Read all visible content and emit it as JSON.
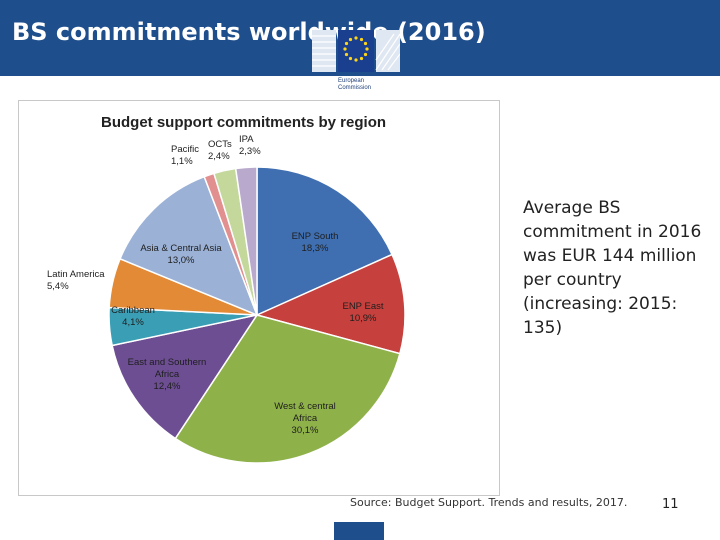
{
  "header": {
    "title": "BS commitments worldwide (2016)",
    "logo_text_line1": "European",
    "logo_text_line2": "Commission"
  },
  "colors": {
    "header_bg": "#1f4e8c",
    "ENP South": "#3f6fb1",
    "ENP East": "#c6413d",
    "West & central Africa": "#8fb14a",
    "East and Southern Africa": "#6d4e93",
    "Caribbean": "#3a9fb5",
    "Latin America": "#e38a36",
    "Asia & Central Asia": "#9bb1d6",
    "Pacific": "#e2908f",
    "OCTs": "#c4d89c",
    "IPA": "#b9a9cc"
  },
  "side_text": "Average BS commitment in 2016 was EUR 144 million per country (increasing: 2015: 135)",
  "source": "Source: Budget Support. Trends and results, 2017.",
  "page_number": "11",
  "chart_data": {
    "type": "pie",
    "title": "Budget support commitments by region",
    "slices": [
      {
        "name": "ENP South",
        "value": 18.3,
        "label": "18,3%"
      },
      {
        "name": "ENP East",
        "value": 10.9,
        "label": "10,9%"
      },
      {
        "name": "West & central Africa",
        "value": 30.1,
        "label": "30,1%"
      },
      {
        "name": "East and Southern Africa",
        "value": 12.4,
        "label": "12,4%"
      },
      {
        "name": "Caribbean",
        "value": 4.1,
        "label": "4,1%"
      },
      {
        "name": "Latin America",
        "value": 5.4,
        "label": "5,4%"
      },
      {
        "name": "Asia & Central Asia",
        "value": 13.0,
        "label": "13,0%"
      },
      {
        "name": "Pacific",
        "value": 1.1,
        "label": "1,1%"
      },
      {
        "name": "OCTs",
        "value": 2.4,
        "label": "2,4%"
      },
      {
        "name": "IPA",
        "value": 2.3,
        "label": "2,3%"
      }
    ]
  }
}
